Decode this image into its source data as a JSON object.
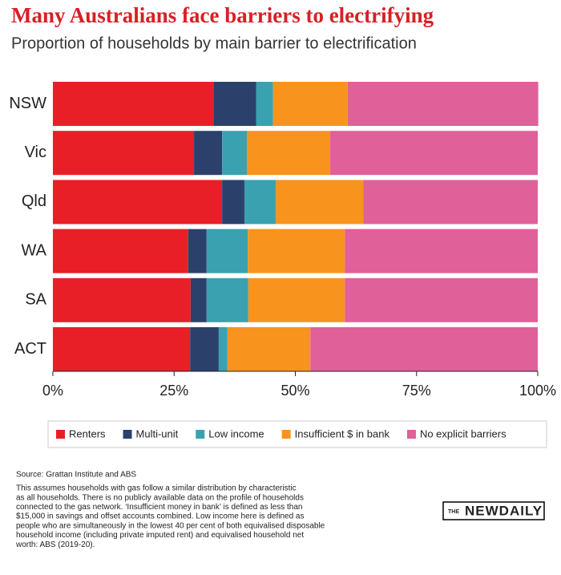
{
  "chart_data": {
    "type": "stacked-bar-horizontal",
    "title": "Many Australians face barriers to electrifying",
    "subtitle": "Proportion of households by main barrier to electrification",
    "categories": [
      "NSW",
      "Vic",
      "Qld",
      "WA",
      "SA",
      "ACT"
    ],
    "series": [
      {
        "name": "Renters",
        "color": "#e81f27",
        "values": [
          33.1,
          29.1,
          34.9,
          27.9,
          28.4,
          28.3
        ]
      },
      {
        "name": "Multi-unit",
        "color": "#2b416c",
        "values": [
          8.8,
          5.8,
          4.6,
          3.8,
          3.3,
          5.9
        ]
      },
      {
        "name": "Low income",
        "color": "#3aa1b1",
        "values": [
          3.5,
          5.1,
          6.5,
          8.5,
          8.6,
          1.8
        ]
      },
      {
        "name": "Insufficient $ in bank",
        "color": "#f8941d",
        "values": [
          15.4,
          17.2,
          18.0,
          20.0,
          19.9,
          17.1
        ]
      },
      {
        "name": "No explicit barriers",
        "color": "#e0609a",
        "values": [
          39.3,
          42.8,
          36.0,
          39.8,
          39.8,
          46.9
        ]
      }
    ],
    "xlim": [
      0,
      100
    ],
    "xticks": [
      {
        "value": 0,
        "label": "0%"
      },
      {
        "value": 25,
        "label": "25%"
      },
      {
        "value": 50,
        "label": "50%"
      },
      {
        "value": 75,
        "label": "75%"
      },
      {
        "value": 100,
        "label": "100%"
      }
    ]
  },
  "source": "Source: Grattan Institute and ABS",
  "notes": [
    "This assumes households with gas follow a similar distribution by characteristic",
    "as all households. There is no publicly available data on the profile of households",
    "connected to the gas network. ‘Insufficient money in bank’ is defined as less than",
    "$15,000 in savings and offset accounts combined. Low income here is defined as",
    "people who are simultaneously in the lowest 40 per cent of both equivalised disposable",
    "household income (including private imputed rent) and equivalised household net",
    "worth: ABS (2019-20)."
  ],
  "logo": {
    "prefix": "THE",
    "name": "NEWDAILY"
  }
}
